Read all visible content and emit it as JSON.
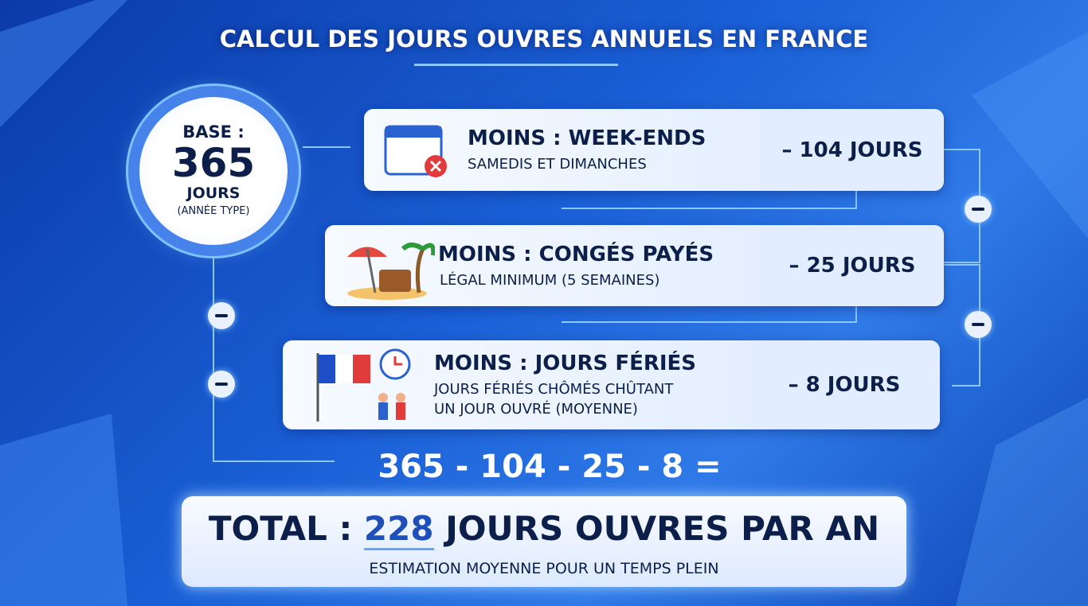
{
  "header": {
    "title": "CALCUL DES JOURS OUVRES ANNUELS EN FRANCE"
  },
  "base": {
    "label": "BASE :",
    "number": "365",
    "unit": "JOURS",
    "note": "(ANNÉE TYPE)"
  },
  "steps": [
    {
      "title": "MOINS : WEEK-ENDS",
      "lines": [
        "SAMEDIS ET DIMANCHES"
      ],
      "value": "– 104 JOURS"
    },
    {
      "title": "MOINS : CONGÉS PAYÉS",
      "lines": [
        "LÉGAL MINIMUM (5 SEMAINES)"
      ],
      "value": "– 25 JOURS"
    },
    {
      "title": "MOINS : JOURS FÉRIÉS",
      "lines": [
        "JOURS FÉRIÉS CHÔMÉS CHÛTANT",
        "UN JOUR OUVRÉ (MOYENNE)"
      ],
      "value": "– 8 JOURS"
    }
  ],
  "equation": "365 - 104 - 25 - 8 =",
  "total": {
    "prefix": "TOTAL :",
    "number": "228",
    "suffix": "JOURS OUVRES PAR AN",
    "note": "ESTIMATION MOYENNE POUR UN TEMPS PLEIN"
  }
}
